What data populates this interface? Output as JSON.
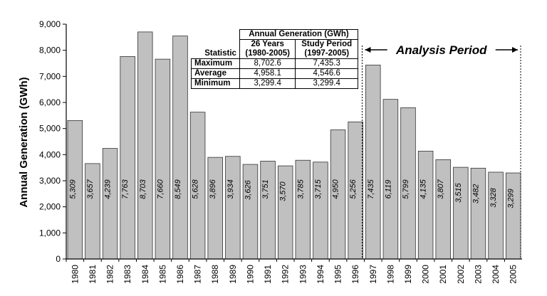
{
  "chart_data": {
    "type": "bar",
    "categories": [
      "1980",
      "1981",
      "1982",
      "1983",
      "1984",
      "1985",
      "1986",
      "1987",
      "1988",
      "1989",
      "1990",
      "1991",
      "1992",
      "1993",
      "1994",
      "1995",
      "1996",
      "1997",
      "1998",
      "1999",
      "2000",
      "2001",
      "2002",
      "2003",
      "2004",
      "2005"
    ],
    "values": [
      5309,
      3657,
      4239,
      7763,
      8703,
      7660,
      8549,
      5628,
      3896,
      3934,
      3626,
      3751,
      3570,
      3785,
      3715,
      4950,
      5256,
      7435,
      6119,
      5799,
      4135,
      3807,
      3515,
      3482,
      3328,
      3299
    ],
    "value_labels": [
      "5,309",
      "3,657",
      "4,239",
      "7,763",
      "8,703",
      "7,660",
      "8,549",
      "5,628",
      "3,896",
      "3,934",
      "3,626",
      "3,751",
      "3,570",
      "3,785",
      "3,715",
      "4,950",
      "5,256",
      "7,435",
      "6,119",
      "5,799",
      "4,135",
      "3,807",
      "3,515",
      "3,482",
      "3,328",
      "3,299"
    ],
    "ylabel": "Annual Generation (GWh)",
    "xlabel": "",
    "title": "",
    "ylim": [
      0,
      9000
    ],
    "yticks": [
      0,
      1000,
      2000,
      3000,
      4000,
      5000,
      6000,
      7000,
      8000,
      9000
    ],
    "ytick_labels": [
      "0",
      "1,000",
      "2,000",
      "3,000",
      "4,000",
      "5,000",
      "6,000",
      "7,000",
      "8,000",
      "9,000"
    ],
    "bar_color": "#c0c0c0",
    "annotation": {
      "text": "Analysis Period",
      "start_category": "1997",
      "end_category": "2005"
    }
  },
  "stats_table": {
    "header": "Annual Generation (GWh)",
    "col0_header": "Statistic",
    "col1_header": "26 Years",
    "col1_sub": "(1980-2005)",
    "col2_header": "Study Period",
    "col2_sub": "(1997-2005)",
    "rows": [
      {
        "label": "Maximum",
        "v1": "8,702.6",
        "v2": "7,435.3"
      },
      {
        "label": "Average",
        "v1": "4,958.1",
        "v2": "4,546.6"
      },
      {
        "label": "Minimum",
        "v1": "3,299.4",
        "v2": "3,299.4"
      }
    ]
  }
}
